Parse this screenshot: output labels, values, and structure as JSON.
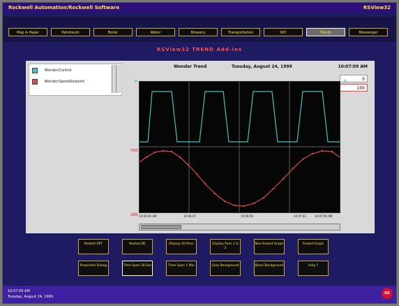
{
  "title_bar": {
    "left": "Rockwell Automation/Rockwell Software",
    "right": "RSView32"
  },
  "nav": {
    "items": [
      "Map & Paper",
      "Petroleum",
      "Boiler",
      "Water",
      "Brewery",
      "Transportation",
      "SPC",
      "Trends",
      "Messenger"
    ],
    "active": "Trends"
  },
  "app_title": "RSView32 TREND Add-ins",
  "trend": {
    "name": "Wonder Trend",
    "date": "Tuesday, August 24, 1999",
    "clock": "10:07:09 AM",
    "values": [
      "0",
      "100"
    ]
  },
  "pens": [
    {
      "label": "Wonder/Control",
      "color": "#41c4bd"
    },
    {
      "label": "Wonder/SpeedSetpoint",
      "color": "#d64a4a"
    }
  ],
  "axis": {
    "top": "700",
    "bottom": "200",
    "left": "0",
    "right": "0"
  },
  "x_labels": [
    "10:06:29 AM",
    "10:06:47",
    "10:06:59",
    "10:07:02",
    "10:07:09 AM"
  ],
  "buttons": [
    [
      "Restart RPT",
      "Restart BE",
      "Display All Pens",
      "Display Pens 1 & 2",
      "Non-Scaled Graph",
      "Scaled Graph"
    ],
    [
      "Properties Dialog",
      "Time Span 30 Sec",
      "Time Span 1 Min",
      "Grey Background",
      "Black Background",
      "Help ?"
    ]
  ],
  "status": {
    "line1": "10:07:09 AM",
    "line2": "Tuesday, August 24, 1999"
  },
  "logo": "RS",
  "colors": {
    "frame": "#1f1b63",
    "accent": "#ffe44a",
    "title": "#ff4f4f",
    "cyan": "#41c4bd",
    "red": "#d64a4a"
  }
}
